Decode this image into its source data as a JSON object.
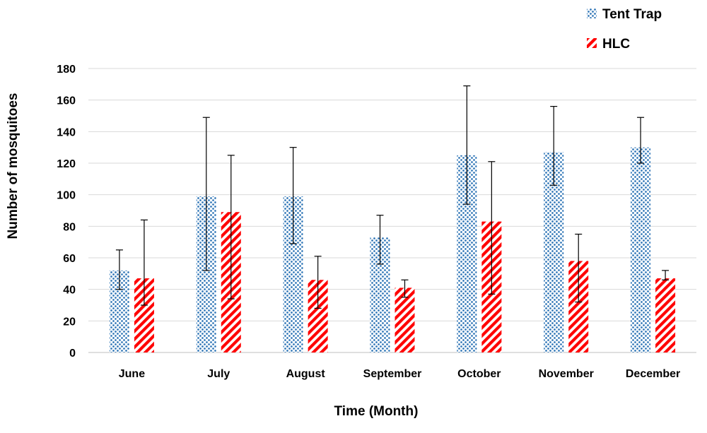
{
  "chart_data": {
    "type": "bar",
    "xlabel": "Time (Month)",
    "ylabel": "Number of mosquitoes",
    "ylim": [
      0,
      180
    ],
    "yticks": [
      0,
      20,
      40,
      60,
      80,
      100,
      120,
      140,
      160,
      180
    ],
    "grid": "horizontal",
    "legend_position": "top-right",
    "categories": [
      "June",
      "July",
      "August",
      "September",
      "October",
      "November",
      "December"
    ],
    "series": [
      {
        "name": "Tent Trap",
        "pattern": "dots",
        "color": "#2e75b6",
        "values": [
          52,
          99,
          99,
          73,
          125,
          127,
          130
        ],
        "error_upper": [
          65,
          149,
          130,
          87,
          169,
          156,
          149
        ],
        "error_lower": [
          40,
          52,
          69,
          56,
          94,
          106,
          120
        ]
      },
      {
        "name": "HLC",
        "pattern": "diagonal-stripes",
        "color": "#ff0000",
        "values": [
          47,
          89,
          46,
          41,
          83,
          58,
          47
        ],
        "error_upper": [
          84,
          125,
          61,
          46,
          121,
          75,
          52
        ],
        "error_lower": [
          30,
          34,
          28,
          35,
          37,
          32,
          46
        ]
      }
    ]
  }
}
